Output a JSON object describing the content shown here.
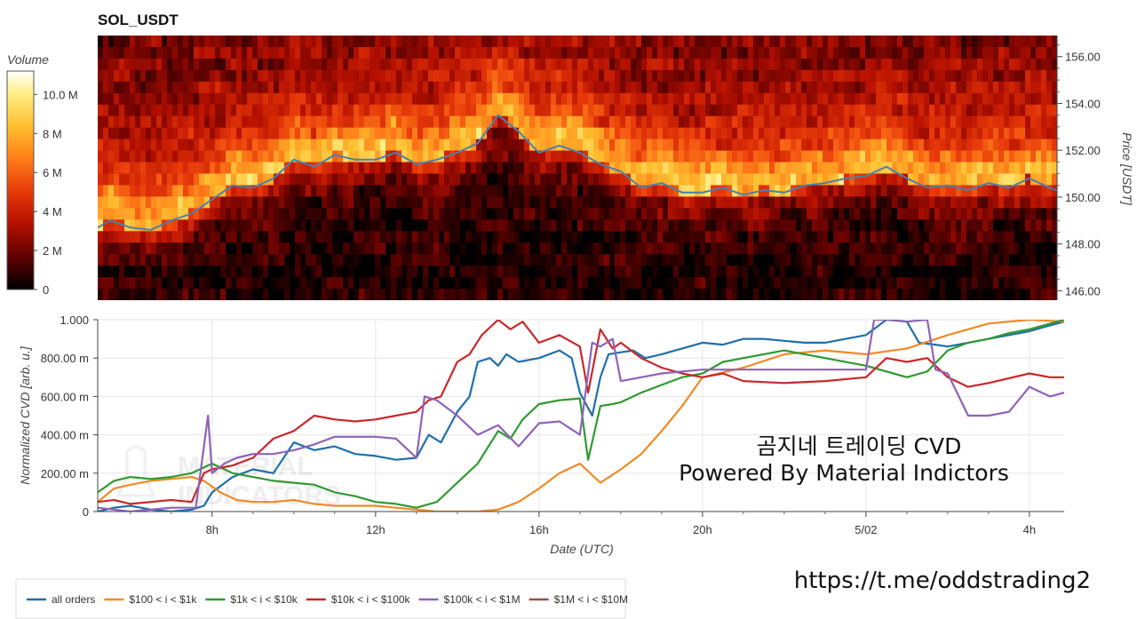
{
  "chart_data": [
    {
      "type": "heatmap",
      "title": "SOL_USDT",
      "ylabel": "Price [USDT]",
      "ylim": [
        145.6,
        156.9
      ],
      "y_ticks": [
        "146.00",
        "148.00",
        "150.00",
        "152.00",
        "154.00",
        "156.00"
      ],
      "y_tick_values": [
        146,
        148,
        150,
        152,
        154,
        156
      ],
      "colorbar": {
        "label": "Volume",
        "ticks": [
          "0",
          "2 M",
          "4 M",
          "6 M",
          "8 M",
          "10.0 M"
        ],
        "tick_values": [
          0,
          2,
          4,
          6,
          8,
          10
        ],
        "range_millions": [
          0,
          11.2
        ],
        "colormap": [
          "#000000",
          "#5a0000",
          "#b41000",
          "#e83a0a",
          "#ff7e1a",
          "#ffc030",
          "#fff088",
          "#ffffff"
        ]
      },
      "price_line": {
        "color": "#4a7fb0",
        "hours": [
          5.1,
          5.5,
          6.0,
          6.5,
          7.0,
          7.5,
          8.0,
          8.5,
          9.0,
          9.5,
          10.0,
          10.5,
          11.0,
          11.5,
          12.0,
          12.5,
          13.0,
          13.5,
          14.0,
          14.5,
          15.0,
          15.5,
          16.0,
          16.5,
          17.0,
          17.5,
          18.0,
          18.5,
          19.0,
          19.5,
          20.0,
          20.5,
          21.0,
          21.5,
          22.0,
          22.5,
          23.0,
          23.5,
          24.0,
          24.5,
          25.0,
          25.5,
          26.0,
          26.5,
          27.0,
          27.5,
          28.0,
          28.5,
          28.8
        ],
        "price": [
          148.6,
          149.0,
          148.7,
          148.6,
          149.0,
          149.3,
          149.9,
          150.5,
          150.4,
          150.8,
          151.6,
          151.3,
          151.8,
          151.6,
          151.6,
          151.9,
          151.4,
          151.6,
          151.9,
          152.3,
          153.5,
          152.8,
          151.9,
          152.2,
          151.9,
          151.4,
          151.1,
          150.4,
          150.6,
          150.2,
          150.2,
          150.4,
          150.1,
          150.3,
          150.2,
          150.5,
          150.6,
          150.8,
          150.9,
          151.3,
          150.8,
          150.4,
          150.5,
          150.3,
          150.6,
          150.4,
          150.8,
          150.4,
          150.2
        ]
      }
    },
    {
      "type": "line",
      "xlabel": "Date (UTC)",
      "ylabel": "Normalized CVD [arb. u.]",
      "ylim": [
        0,
        1.0
      ],
      "y_ticks": [
        "0",
        "200.00 m",
        "400.00 m",
        "600.00 m",
        "800.00 m",
        "1.000"
      ],
      "y_tick_values": [
        0,
        0.2,
        0.4,
        0.6,
        0.8,
        1.0
      ],
      "x_ticks": [
        "8h",
        "12h",
        "16h",
        "20h",
        "5/02",
        "4h"
      ],
      "x_tick_hours": [
        8,
        12,
        16,
        20,
        24,
        28
      ],
      "xlim_hours": [
        5.2,
        28.85
      ],
      "series": [
        {
          "name": "all orders",
          "color": "#1f6fa8",
          "hours": [
            5.2,
            5.6,
            6.0,
            6.5,
            7.0,
            7.5,
            7.8,
            8.0,
            8.5,
            9.0,
            9.5,
            10.0,
            10.5,
            11.0,
            11.5,
            12.0,
            12.5,
            13.0,
            13.3,
            13.6,
            14.0,
            14.3,
            14.5,
            14.8,
            15.0,
            15.2,
            15.5,
            16.0,
            16.5,
            16.8,
            17.0,
            17.3,
            17.5,
            17.7,
            18.0,
            18.3,
            18.6,
            19.0,
            19.5,
            20.0,
            20.5,
            21.0,
            21.5,
            22.0,
            22.5,
            23.0,
            23.5,
            24.0,
            24.5,
            25.0,
            25.3,
            25.7,
            26.0,
            26.5,
            27.0,
            27.5,
            28.0,
            28.5,
            28.85
          ],
          "values": [
            0.0,
            0.02,
            0.03,
            0.01,
            0.0,
            0.01,
            0.03,
            0.1,
            0.18,
            0.22,
            0.2,
            0.36,
            0.32,
            0.34,
            0.3,
            0.29,
            0.27,
            0.28,
            0.4,
            0.36,
            0.52,
            0.6,
            0.78,
            0.8,
            0.76,
            0.82,
            0.78,
            0.8,
            0.84,
            0.8,
            0.62,
            0.5,
            0.7,
            0.82,
            0.83,
            0.84,
            0.8,
            0.82,
            0.85,
            0.88,
            0.87,
            0.9,
            0.9,
            0.89,
            0.88,
            0.88,
            0.9,
            0.92,
            1.0,
            0.99,
            0.88,
            0.87,
            0.86,
            0.88,
            0.9,
            0.92,
            0.94,
            0.97,
            0.99
          ]
        },
        {
          "name": "$100 < i < $1k",
          "color": "#f08a24",
          "hours": [
            5.2,
            5.6,
            6.0,
            6.5,
            7.0,
            7.5,
            7.8,
            8.2,
            8.6,
            9.0,
            9.5,
            10.0,
            10.5,
            11.0,
            11.5,
            12.0,
            12.5,
            13.0,
            13.5,
            14.0,
            14.5,
            15.0,
            15.5,
            16.0,
            16.5,
            17.0,
            17.5,
            18.0,
            18.5,
            19.0,
            19.5,
            20.0,
            21.0,
            22.0,
            23.0,
            24.0,
            25.0,
            26.0,
            27.0,
            28.0,
            28.85
          ],
          "values": [
            0.05,
            0.12,
            0.14,
            0.16,
            0.17,
            0.18,
            0.16,
            0.1,
            0.06,
            0.05,
            0.05,
            0.06,
            0.04,
            0.03,
            0.03,
            0.03,
            0.02,
            0.01,
            0.0,
            0.0,
            0.0,
            0.01,
            0.05,
            0.12,
            0.2,
            0.25,
            0.15,
            0.22,
            0.3,
            0.42,
            0.55,
            0.7,
            0.75,
            0.82,
            0.84,
            0.82,
            0.85,
            0.92,
            0.98,
            1.0,
            0.99
          ]
        },
        {
          "name": "$1k < i < $10k",
          "color": "#2f9a2f",
          "hours": [
            5.2,
            5.6,
            6.0,
            6.5,
            7.0,
            7.5,
            8.0,
            8.5,
            9.0,
            9.5,
            10.0,
            10.5,
            11.0,
            11.5,
            12.0,
            12.5,
            13.0,
            13.5,
            14.0,
            14.5,
            15.0,
            15.3,
            15.6,
            16.0,
            16.5,
            17.0,
            17.2,
            17.5,
            17.8,
            18.0,
            18.5,
            19.0,
            19.5,
            20.0,
            20.5,
            21.0,
            22.0,
            23.0,
            24.0,
            25.0,
            25.5,
            26.0,
            26.5,
            27.0,
            27.5,
            28.0,
            28.85
          ],
          "values": [
            0.1,
            0.16,
            0.18,
            0.17,
            0.18,
            0.2,
            0.25,
            0.2,
            0.18,
            0.16,
            0.15,
            0.14,
            0.1,
            0.08,
            0.05,
            0.04,
            0.02,
            0.05,
            0.15,
            0.25,
            0.42,
            0.38,
            0.48,
            0.56,
            0.58,
            0.59,
            0.27,
            0.55,
            0.56,
            0.57,
            0.62,
            0.66,
            0.7,
            0.72,
            0.78,
            0.8,
            0.84,
            0.8,
            0.76,
            0.7,
            0.73,
            0.84,
            0.88,
            0.9,
            0.93,
            0.95,
            1.0
          ]
        },
        {
          "name": "$10k < i < $100k",
          "color": "#c8282a",
          "hours": [
            5.2,
            5.6,
            6.0,
            6.5,
            7.0,
            7.5,
            7.8,
            8.0,
            8.5,
            9.0,
            9.5,
            10.0,
            10.5,
            11.0,
            11.5,
            12.0,
            12.5,
            13.0,
            13.3,
            13.6,
            14.0,
            14.3,
            14.6,
            15.0,
            15.3,
            15.6,
            16.0,
            16.5,
            17.0,
            17.2,
            17.5,
            17.8,
            18.0,
            18.5,
            19.0,
            19.5,
            20.0,
            20.5,
            21.0,
            22.0,
            23.0,
            24.0,
            24.5,
            25.0,
            25.5,
            26.0,
            26.5,
            27.0,
            28.0,
            28.5,
            28.85
          ],
          "values": [
            0.05,
            0.06,
            0.04,
            0.05,
            0.06,
            0.05,
            0.2,
            0.22,
            0.24,
            0.28,
            0.38,
            0.42,
            0.5,
            0.48,
            0.47,
            0.48,
            0.5,
            0.52,
            0.58,
            0.6,
            0.78,
            0.82,
            0.92,
            1.0,
            0.95,
            0.99,
            0.88,
            0.92,
            0.86,
            0.62,
            0.95,
            0.85,
            0.88,
            0.8,
            0.75,
            0.72,
            0.7,
            0.72,
            0.68,
            0.67,
            0.68,
            0.7,
            0.8,
            0.78,
            0.8,
            0.7,
            0.65,
            0.67,
            0.72,
            0.7,
            0.7
          ]
        },
        {
          "name": "$100k < i < $1M",
          "color": "#8e63b8",
          "hours": [
            5.2,
            6.0,
            7.0,
            7.6,
            7.9,
            8.0,
            8.3,
            8.6,
            9.0,
            9.5,
            10.0,
            10.5,
            11.0,
            12.0,
            12.5,
            13.0,
            13.2,
            13.5,
            14.0,
            14.5,
            15.0,
            15.5,
            16.0,
            16.5,
            17.0,
            17.3,
            17.5,
            17.8,
            18.0,
            18.5,
            19.0,
            19.5,
            20.0,
            21.0,
            22.0,
            23.0,
            24.0,
            24.2,
            24.6,
            25.0,
            25.5,
            25.7,
            26.0,
            26.5,
            27.0,
            27.5,
            28.0,
            28.5,
            28.85
          ],
          "values": [
            0.02,
            0.0,
            0.02,
            0.02,
            0.5,
            0.2,
            0.25,
            0.28,
            0.3,
            0.3,
            0.32,
            0.35,
            0.39,
            0.39,
            0.38,
            0.28,
            0.6,
            0.58,
            0.5,
            0.4,
            0.45,
            0.34,
            0.46,
            0.47,
            0.4,
            0.88,
            0.86,
            0.9,
            0.68,
            0.7,
            0.72,
            0.73,
            0.74,
            0.74,
            0.74,
            0.74,
            0.74,
            1.0,
            1.0,
            0.99,
            1.0,
            0.74,
            0.72,
            0.5,
            0.5,
            0.52,
            0.65,
            0.6,
            0.62
          ]
        },
        {
          "name": "$1M < i < $10M",
          "color": "#8c564b",
          "hours": [],
          "values": []
        }
      ]
    }
  ],
  "annotation": {
    "line1": "곰지네 트레이딩 CVD",
    "line2": "Powered By Material Indictors"
  },
  "url_text": "https://t.me/oddstrading2"
}
